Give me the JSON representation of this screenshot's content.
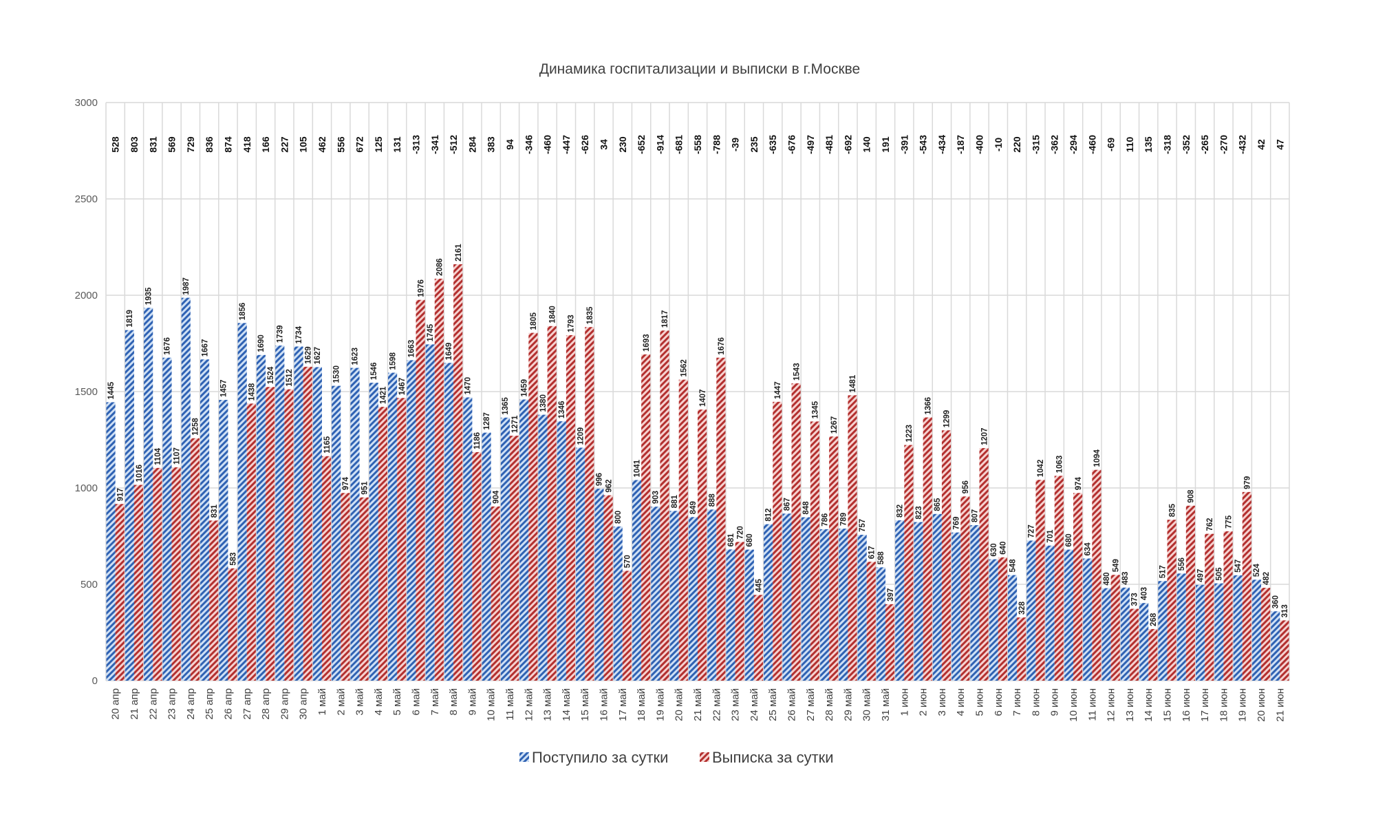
{
  "chart_data": {
    "type": "bar",
    "title": "Динамика госпитализации и выписки в г.Москве",
    "xlabel": "",
    "ylabel": "",
    "ylim": [
      0,
      3000
    ],
    "yticks": [
      0,
      500,
      1000,
      1500,
      2000,
      2500,
      3000
    ],
    "grid": true,
    "legend_position": "bottom",
    "categories": [
      "20 апр",
      "21 апр",
      "22 апр",
      "23 апр",
      "24 апр",
      "25 апр",
      "26 апр",
      "27 апр",
      "28 апр",
      "29 апр",
      "30 апр",
      "1 май",
      "2 май",
      "3 май",
      "4 май",
      "5 май",
      "6 май",
      "7 май",
      "8 май",
      "9 май",
      "10 май",
      "11 май",
      "12 май",
      "13 май",
      "14 май",
      "15 май",
      "16 май",
      "17 май",
      "18 май",
      "19 май",
      "20 май",
      "21 май",
      "22 май",
      "23 май",
      "24 май",
      "25 май",
      "26 май",
      "27 май",
      "28 май",
      "29 май",
      "30 май",
      "31 май",
      "1 июн",
      "2 июн",
      "3 июн",
      "4 июн",
      "5 июн",
      "6 июн",
      "7 июн",
      "8 июн",
      "9 июн",
      "10 июн",
      "11 июн",
      "12 июн",
      "13 июн",
      "14 июн",
      "15 июн",
      "16 июн",
      "17 июн",
      "18 июн",
      "19 июн",
      "20 июн",
      "21 июн"
    ],
    "series": [
      {
        "name": "Поступило за сутки",
        "color": "#2f62b3",
        "bg": "#cfe0f5",
        "values": [
          1445,
          1819,
          1935,
          1676,
          1987,
          1667,
          1457,
          1856,
          1690,
          1739,
          1734,
          1627,
          1530,
          1623,
          1546,
          1598,
          1663,
          1745,
          1649,
          1470,
          1287,
          1365,
          1459,
          1380,
          1346,
          1209,
          996,
          800,
          1041,
          903,
          881,
          849,
          888,
          681,
          680,
          812,
          867,
          848,
          786,
          789,
          757,
          588,
          832,
          823,
          865,
          769,
          807,
          630,
          548,
          727,
          701,
          680,
          634,
          480,
          483,
          403,
          517,
          556,
          497,
          505,
          547,
          524,
          360
        ]
      },
      {
        "name": "Выписка за сутки",
        "color": "#b3302f",
        "bg": "#f6d2d0",
        "values": [
          917,
          1016,
          1104,
          1107,
          1258,
          831,
          583,
          1438,
          1524,
          1512,
          1629,
          1165,
          974,
          951,
          1421,
          1467,
          1976,
          2086,
          2161,
          1186,
          904,
          1271,
          1805,
          1840,
          1793,
          1835,
          962,
          570,
          1693,
          1817,
          1562,
          1407,
          1676,
          720,
          445,
          1447,
          1543,
          1345,
          1267,
          1481,
          617,
          397,
          1223,
          1366,
          1299,
          956,
          1207,
          640,
          328,
          1042,
          1063,
          974,
          1094,
          549,
          373,
          268,
          835,
          908,
          762,
          775,
          979,
          482,
          313
        ]
      }
    ],
    "difference_row": [
      528,
      803,
      831,
      569,
      729,
      836,
      874,
      418,
      166,
      227,
      105,
      462,
      556,
      672,
      125,
      131,
      -313,
      -341,
      -512,
      284,
      383,
      94,
      -346,
      -460,
      -447,
      -626,
      34,
      230,
      -652,
      -914,
      -681,
      -558,
      -788,
      -39,
      235,
      -635,
      -676,
      -497,
      -481,
      -692,
      140,
      191,
      -391,
      -543,
      -434,
      -187,
      -400,
      -10,
      220,
      -315,
      -362,
      -294,
      -460,
      -69,
      110,
      135,
      -318,
      -352,
      -265,
      -270,
      -432,
      42,
      47
    ]
  }
}
